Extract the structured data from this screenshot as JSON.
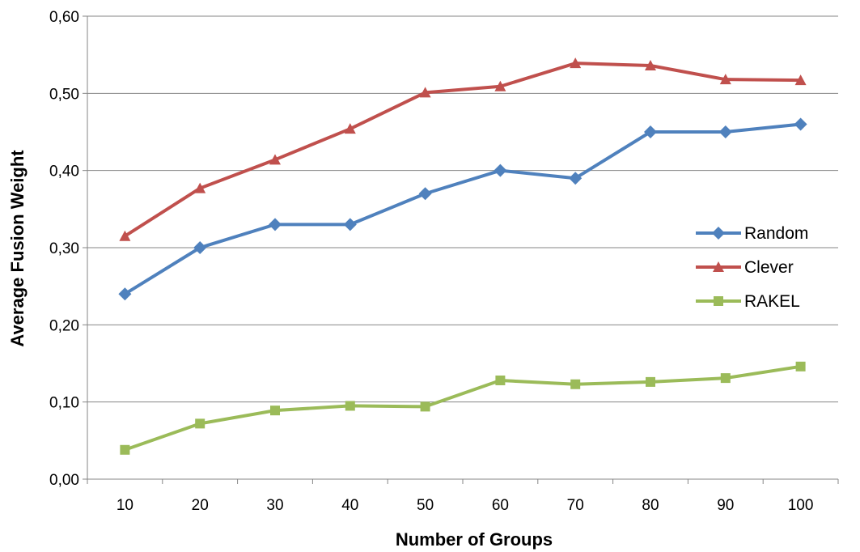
{
  "chart_data": {
    "type": "line",
    "title": "",
    "xlabel": "Number of Groups",
    "ylabel": "Average Fusion Weight",
    "x": [
      "10",
      "20",
      "30",
      "40",
      "50",
      "60",
      "70",
      "80",
      "90",
      "100"
    ],
    "ylim": [
      0,
      0.6
    ],
    "yticks": [
      "0,00",
      "0,10",
      "0,20",
      "0,30",
      "0,40",
      "0,50",
      "0,60"
    ],
    "grid": true,
    "legend_position": "right",
    "series": [
      {
        "name": "Random",
        "color": "#4F81BD",
        "marker": "diamond",
        "values": [
          0.24,
          0.3,
          0.33,
          0.33,
          0.37,
          0.4,
          0.39,
          0.45,
          0.45,
          0.46
        ]
      },
      {
        "name": "Clever",
        "color": "#C0504D",
        "marker": "triangle",
        "values": [
          0.315,
          0.377,
          0.414,
          0.454,
          0.501,
          0.509,
          0.539,
          0.536,
          0.518,
          0.517
        ]
      },
      {
        "name": "RAKEL",
        "color": "#9BBB59",
        "marker": "square",
        "values": [
          0.038,
          0.072,
          0.089,
          0.095,
          0.094,
          0.128,
          0.123,
          0.126,
          0.131,
          0.146
        ]
      }
    ]
  }
}
